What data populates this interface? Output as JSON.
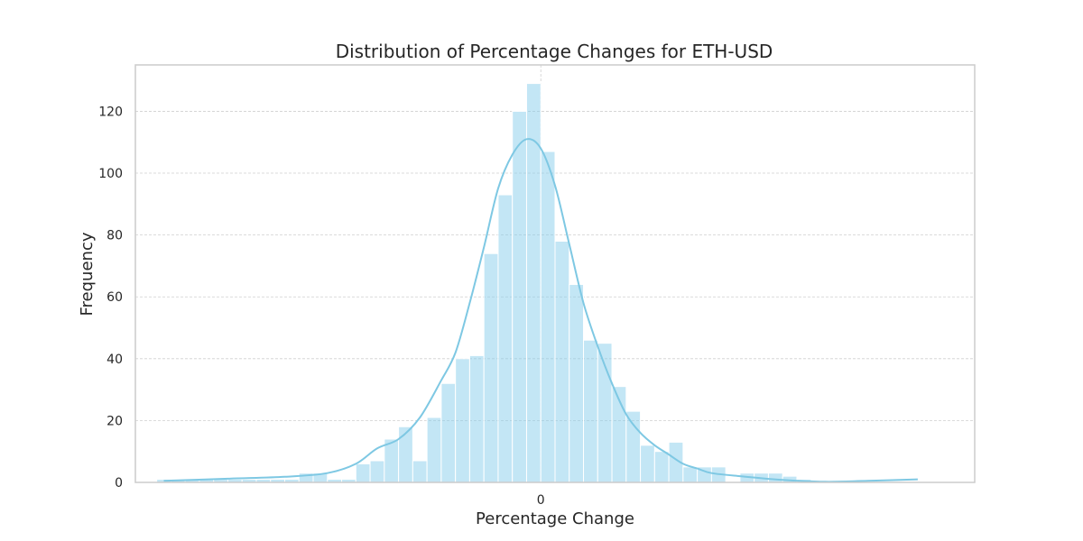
{
  "chart_data": {
    "type": "bar",
    "title": "Distribution of Percentage Changes for ETH-USD",
    "xlabel": "Percentage Change",
    "ylabel": "Frequency",
    "ylim": [
      0,
      135
    ],
    "grid": true,
    "legend": "none",
    "bar_color": "#87ceeb",
    "kde_color": "#7ec8e3",
    "x_ticks": [
      {
        "value": 0,
        "label": "0"
      }
    ],
    "y_ticks": [
      0,
      20,
      40,
      60,
      80,
      100,
      120
    ],
    "xlim": [
      -28.5,
      30.5
    ],
    "x_bin_start": -27,
    "bin_width": 1,
    "values": [
      1,
      1,
      1,
      1,
      1,
      1,
      1,
      1,
      1,
      1,
      3,
      3,
      1,
      1,
      6,
      7,
      14,
      18,
      7,
      21,
      32,
      40,
      41,
      74,
      93,
      120,
      129,
      107,
      78,
      64,
      46,
      45,
      31,
      23,
      12,
      10,
      13,
      5,
      5,
      5,
      0,
      3,
      3,
      3,
      2,
      1,
      0,
      0,
      0,
      0,
      0,
      0,
      0,
      0
    ],
    "kde": {
      "x": [
        -26.5,
        -22,
        -18,
        -15,
        -13,
        -11.5,
        -10,
        -8.5,
        -7,
        -6,
        -5,
        -4,
        -3,
        -2,
        -1,
        0,
        1,
        2,
        3,
        4,
        5,
        6,
        7,
        8,
        9,
        10,
        11,
        12,
        14,
        17,
        20,
        23,
        26.5
      ],
      "y": [
        0.5,
        1.2,
        1.8,
        3,
        6,
        11,
        14,
        21,
        33,
        42,
        58,
        76,
        95,
        106,
        111,
        108,
        96,
        77,
        58,
        44,
        32,
        22,
        16,
        12,
        9,
        6,
        4.5,
        3,
        2,
        0.8,
        0.2,
        0.5,
        1
      ]
    }
  }
}
